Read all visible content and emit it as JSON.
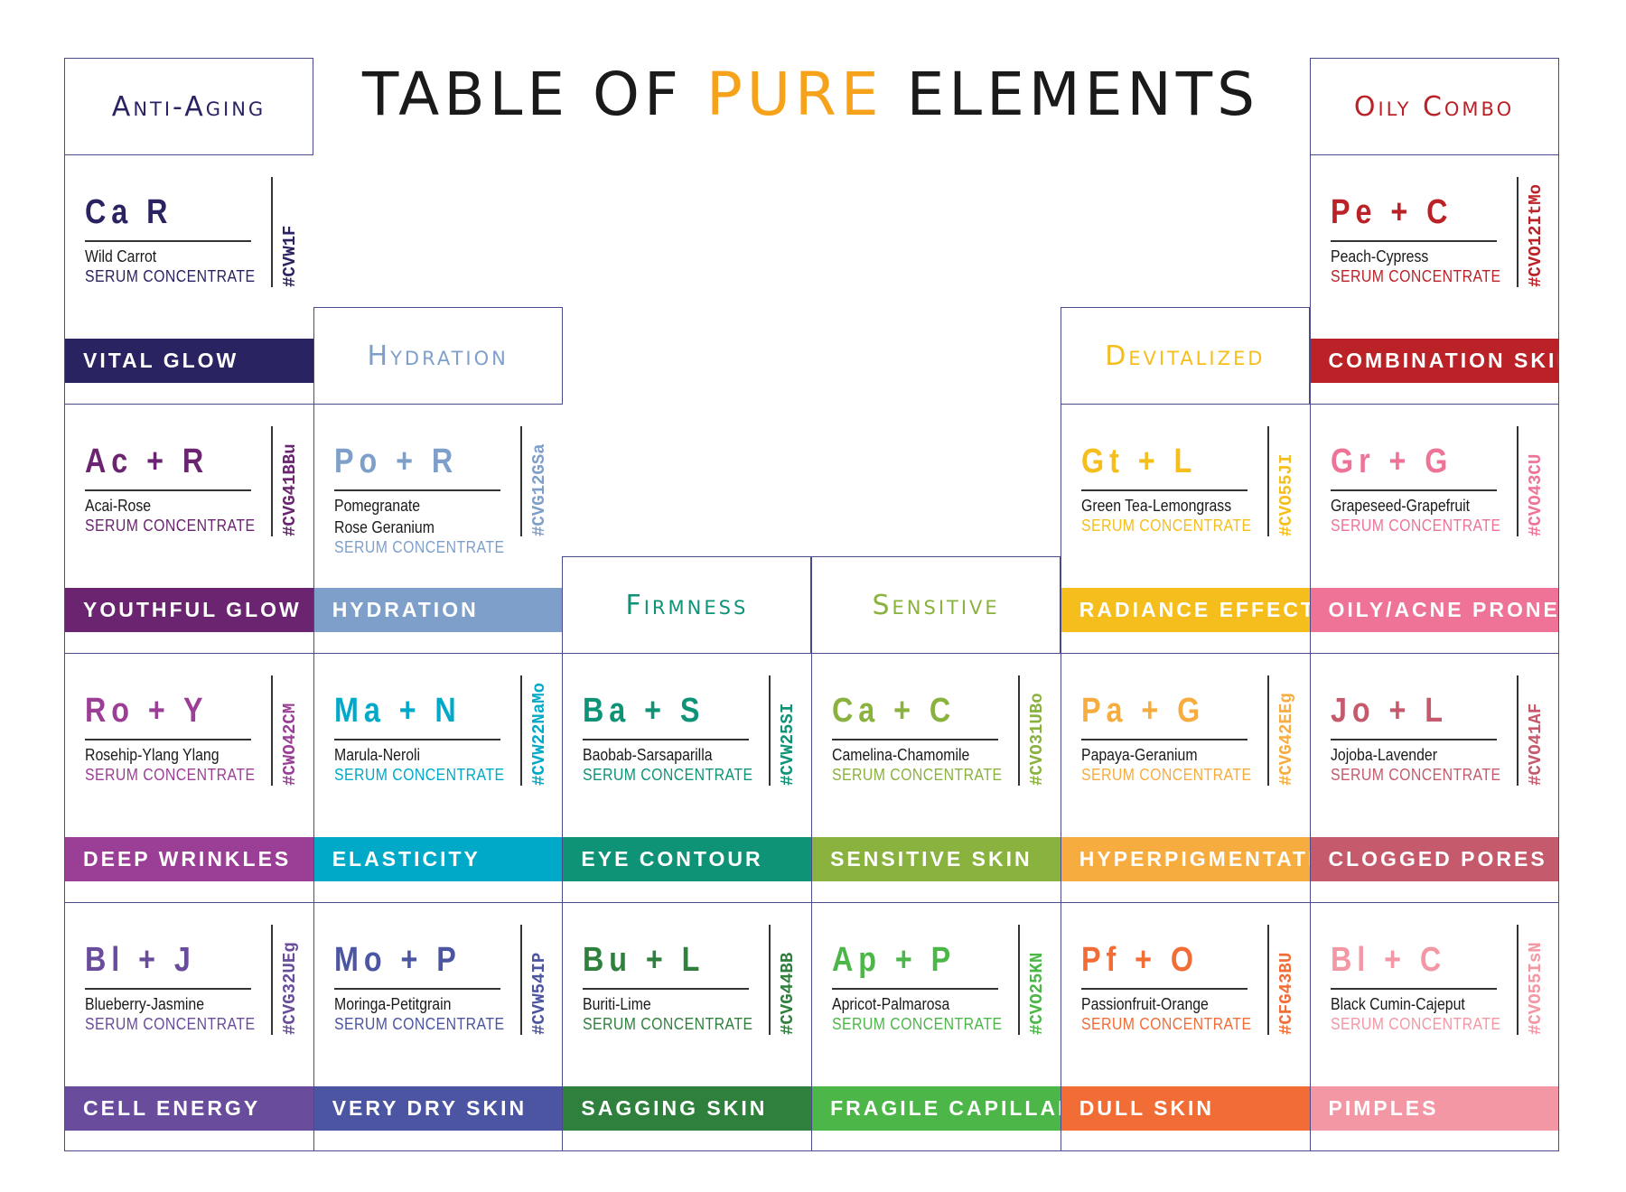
{
  "title": {
    "part1": "TABLE OF ",
    "accent": "PURE",
    "part2": " ELEMENTS",
    "accent_color": "#f7a21b"
  },
  "serum_label": "SERUM CONCENTRATE",
  "columns": [
    {
      "header": "Anti-Aging",
      "color": "#2a2362",
      "start_row": 0,
      "cells": [
        {
          "symbol": "Ca R",
          "name": [
            "Wild Carrot"
          ],
          "code": "#CVW1F",
          "color": "#2a2362",
          "band": "VITAL GLOW"
        },
        {
          "symbol": "Ac + R",
          "name": [
            "Acai-Rose"
          ],
          "code": "#CVG41BBu",
          "color": "#6b2470",
          "band": "YOUTHFUL GLOW"
        },
        {
          "symbol": "Ro + Y",
          "name": [
            "Rosehip-Ylang Ylang"
          ],
          "code": "#CWO42CM",
          "color": "#9b3f96",
          "band": "DEEP WRINKLES"
        },
        {
          "symbol": "Bl + J",
          "name": [
            "Blueberry-Jasmine"
          ],
          "code": "#CVG32UEg",
          "color": "#6a4c9c",
          "band": "CELL ENERGY"
        }
      ]
    },
    {
      "header": "Hydration",
      "color": "#7f9fcb",
      "start_row": 1,
      "cells": [
        {
          "symbol": "Po + R",
          "name": [
            "Pomegranate",
            "Rose Geranium"
          ],
          "code": "#CVG12GSa",
          "color": "#7f9fcb",
          "band": "HYDRATION"
        },
        {
          "symbol": "Ma + N",
          "name": [
            "Marula-Neroli"
          ],
          "code": "#CVW22NaMo",
          "color": "#00a9c8",
          "band": "ELASTICITY"
        },
        {
          "symbol": "Mo + P",
          "name": [
            "Moringa-Petitgrain"
          ],
          "code": "#CVW54IP",
          "color": "#4b55a1",
          "band": "VERY DRY SKIN"
        }
      ]
    },
    {
      "header": "Firmness",
      "color": "#0e9377",
      "start_row": 2,
      "cells": [
        {
          "symbol": "Ba + S",
          "name": [
            "Baobab-Sarsaparilla"
          ],
          "code": "#CVW25SI",
          "color": "#0e9377",
          "band": "EYE CONTOUR"
        },
        {
          "symbol": "Bu + L",
          "name": [
            "Buriti-Lime"
          ],
          "code": "#CVG44BB",
          "color": "#2f7f3d",
          "band": "SAGGING SKIN"
        }
      ]
    },
    {
      "header": "Sensitive",
      "color": "#8ab23e",
      "start_row": 2,
      "cells": [
        {
          "symbol": "Ca + C",
          "name": [
            "Camelina-Chamomile"
          ],
          "code": "#CVO31UBo",
          "color": "#8ab23e",
          "band": "SENSITIVE SKIN"
        },
        {
          "symbol": "Ap + P",
          "name": [
            "Apricot-Palmarosa"
          ],
          "code": "#CVO25KN",
          "color": "#4cb748",
          "band": "FRAGILE CAPILLARIES"
        }
      ]
    },
    {
      "header": "Devitalized",
      "color": "#f6be1c",
      "start_row": 1,
      "cells": [
        {
          "symbol": "Gt + L",
          "name": [
            "Green Tea-Lemongrass"
          ],
          "code": "#CVO55JI",
          "color": "#f6be1c",
          "band": "RADIANCE EFFECT"
        },
        {
          "symbol": "Pa + G",
          "name": [
            "Papaya-Geranium"
          ],
          "code": "#CVG42EEg",
          "color": "#f7ac3f",
          "band": "HYPERPIGMENTATION"
        },
        {
          "symbol": "Pf + O",
          "name": [
            "Passionfruit-Orange"
          ],
          "code": "#CFG43BU",
          "color": "#f26c36",
          "band": "DULL SKIN"
        }
      ]
    },
    {
      "header": "Oily Combo",
      "color": "#bb2228",
      "start_row": 0,
      "cells": [
        {
          "symbol": "Pe + C",
          "name": [
            "Peach-Cypress"
          ],
          "code": "#CVO12ItMo",
          "color": "#bb2228",
          "band": "COMBINATION SKIN"
        },
        {
          "symbol": "Gr + G",
          "name": [
            "Grapeseed-Grapefruit"
          ],
          "code": "#CVO43CU",
          "color": "#ee7396",
          "band": "OILY/ACNE PRONE"
        },
        {
          "symbol": "Jo + L",
          "name": [
            "Jojoba-Lavender"
          ],
          "code": "#CVO41AF",
          "color": "#c45a6c",
          "band": "CLOGGED PORES"
        },
        {
          "symbol": "Bl + C",
          "name": [
            "Black Cumin-Cajeput"
          ],
          "code": "#CVO55IsN",
          "color": "#f497a4",
          "band": "PIMPLES"
        }
      ]
    }
  ]
}
